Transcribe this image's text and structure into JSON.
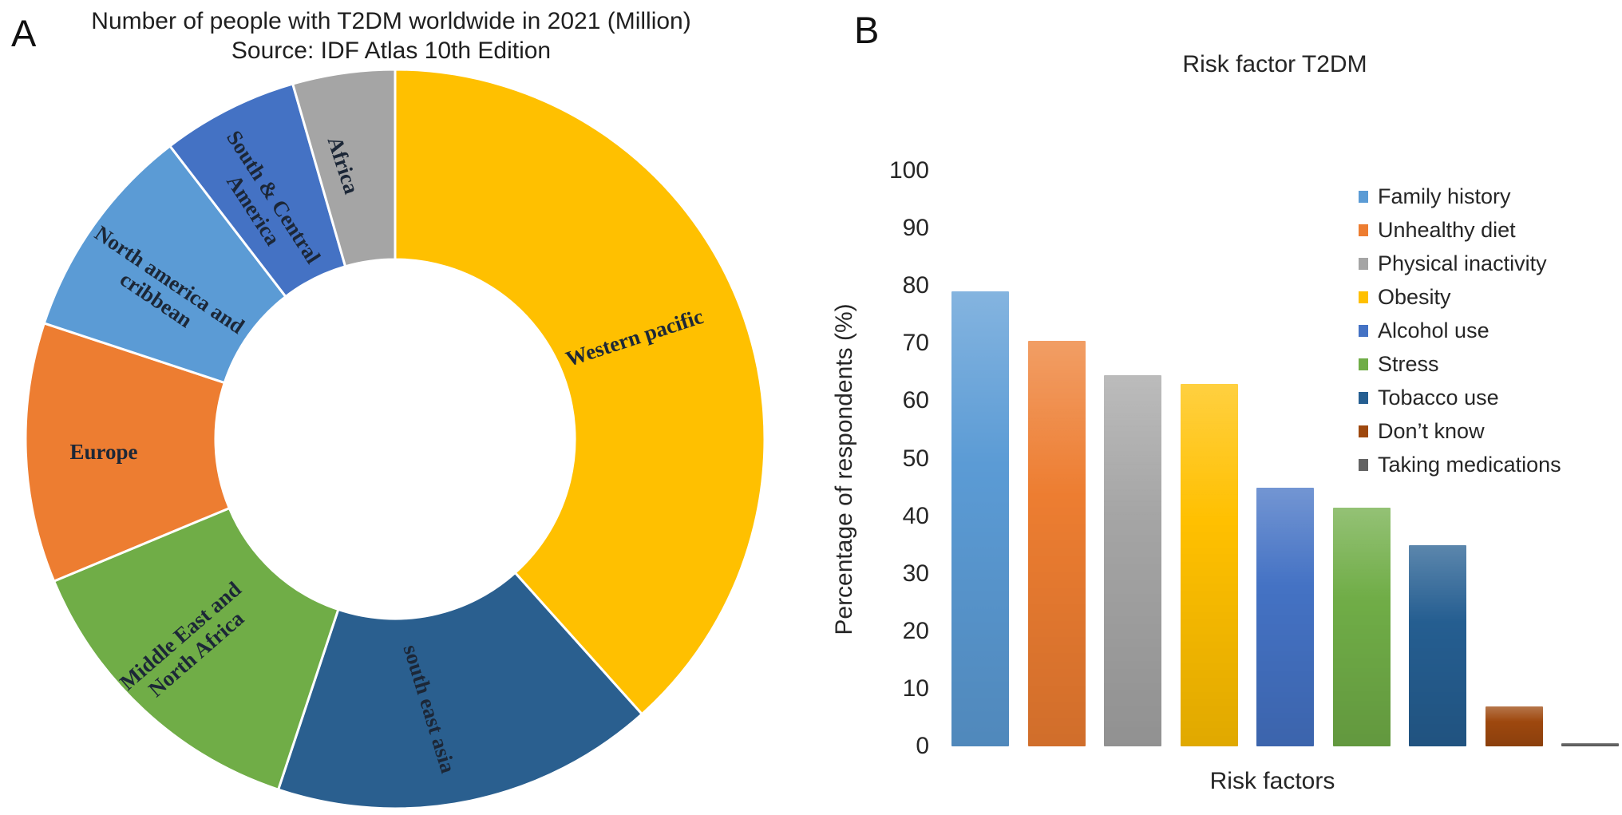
{
  "panels": {
    "a": {
      "letter": "A",
      "title_line1": "Number of people with T2DM worldwide in 2021 (Million)",
      "title_line2": "Source: IDF Atlas 10th Edition"
    },
    "b": {
      "letter": "B",
      "title": "Risk factor T2DM",
      "y_axis_label": "Percentage of respondents (%)",
      "x_axis_label": "Risk factors"
    }
  },
  "chart_data": [
    {
      "type": "pie",
      "subtype": "donut",
      "title": "Number of people with T2DM worldwide in 2021 (Million)",
      "subtitle": "Source: IDF Atlas 10th Edition",
      "value_unit": "million people (values estimated from slice angles)",
      "start_angle_deg": 0,
      "direction": "clockwise",
      "hole_ratio": 0.48,
      "slices": [
        {
          "label": "Western pacific",
          "value": 206,
          "color": "#FFC000"
        },
        {
          "label": "south east asia",
          "value": 90,
          "color": "#2A5F8F"
        },
        {
          "label": "Middle East and North Africa",
          "value": 73,
          "color": "#70AD47"
        },
        {
          "label": "Europe",
          "value": 61,
          "color": "#ED7D31"
        },
        {
          "label": "North america and cribbean",
          "value": 51,
          "color": "#5B9BD5"
        },
        {
          "label": "South & Central America",
          "value": 32,
          "color": "#4472C4"
        },
        {
          "label": "Africa",
          "value": 24,
          "color": "#A5A5A5"
        }
      ]
    },
    {
      "type": "bar",
      "title": "Risk factor T2DM",
      "xlabel": "Risk factors",
      "ylabel": "Percentage of respondents (%)",
      "ylim": [
        0,
        100
      ],
      "yticks": [
        0,
        10,
        20,
        30,
        40,
        50,
        60,
        70,
        80,
        90,
        100
      ],
      "grid": false,
      "legend_position": "right",
      "series": [
        {
          "name": "Family history",
          "value": 79,
          "color": "#5B9BD5"
        },
        {
          "name": "Unhealthy diet",
          "value": 70.5,
          "color": "#ED7D31"
        },
        {
          "name": "Physical inactivity",
          "value": 64.5,
          "color": "#A5A5A5"
        },
        {
          "name": "Obesity",
          "value": 63,
          "color": "#FFC000"
        },
        {
          "name": "Alcohol use",
          "value": 45,
          "color": "#4472C4"
        },
        {
          "name": "Stress",
          "value": 41.5,
          "color": "#70AD47"
        },
        {
          "name": "Tobacco use",
          "value": 35,
          "color": "#255E91"
        },
        {
          "name": "Don’t know",
          "value": 7,
          "color": "#9E480E"
        },
        {
          "name": "Taking medications",
          "value": 0.5,
          "color": "#636363"
        }
      ]
    }
  ]
}
